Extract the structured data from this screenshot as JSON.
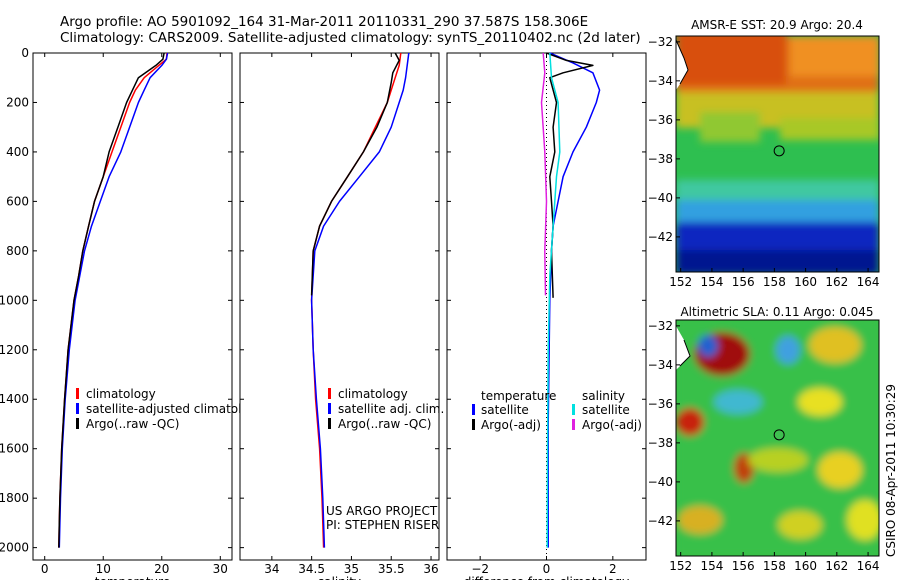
{
  "header": {
    "title_line1": "Argo profile: AO 5901092_164 31-Mar-2011 20110331_290 37.587S 158.306E",
    "title_line2": "Climatology: CARS2009. Satellite-adjusted climatology: synTS_20110402.nc (2d later)"
  },
  "side_stamp": "CSIRO 08-Apr-2011 10:30:29",
  "colors": {
    "climatology": "#ff0000",
    "satellite": "#0000ff",
    "argo": "#000000",
    "sal_satellite": "#00e0e0",
    "sal_argo": "#e020e0"
  },
  "chart_data": [
    {
      "id": "temperature",
      "type": "line",
      "xlabel": "temperature",
      "ylabel": "",
      "xlim": [
        -2,
        32
      ],
      "ylim": [
        2050,
        0
      ],
      "xticks": [
        0,
        10,
        20,
        30
      ],
      "yticks": [
        0,
        200,
        400,
        600,
        800,
        1000,
        1200,
        1400,
        1600,
        1800,
        2000
      ],
      "legend": [
        "climatology",
        "satellite-adjusted climatology",
        "Argo(..raw -QC)"
      ],
      "series": [
        {
          "name": "climatology",
          "color": "#ff0000",
          "x": [
            20.9,
            20.8,
            19.5,
            17.0,
            15.5,
            14.5,
            13.0,
            11.5,
            10.0,
            8.5,
            7.5,
            6.5,
            5.8,
            5.0,
            4.0,
            3.4,
            2.9,
            2.6,
            2.5,
            2.4
          ],
          "y": [
            0,
            25,
            50,
            100,
            150,
            200,
            300,
            400,
            500,
            600,
            700,
            800,
            900,
            1000,
            1200,
            1400,
            1600,
            1800,
            1900,
            2000
          ]
        },
        {
          "name": "satellite-adjusted climatology",
          "color": "#0000ff",
          "x": [
            21.0,
            20.8,
            20.0,
            18.0,
            17.0,
            16.0,
            14.5,
            13.0,
            11.0,
            9.5,
            8.0,
            6.8,
            6.0,
            5.2,
            4.2,
            3.5,
            3.0,
            2.7,
            2.6,
            2.5
          ],
          "y": [
            0,
            25,
            50,
            100,
            150,
            200,
            300,
            400,
            500,
            600,
            700,
            800,
            900,
            1000,
            1200,
            1400,
            1600,
            1800,
            1900,
            2000
          ]
        },
        {
          "name": "Argo(..raw -QC)",
          "color": "#000000",
          "x": [
            20.4,
            20.2,
            19.0,
            16.0,
            15.0,
            14.0,
            12.5,
            11.0,
            10.0,
            8.5,
            7.5,
            6.5,
            5.8,
            5.0,
            4.0,
            3.4,
            2.9,
            2.6,
            2.5,
            2.4
          ],
          "y": [
            0,
            25,
            50,
            100,
            150,
            200,
            300,
            400,
            500,
            600,
            700,
            800,
            900,
            1000,
            1200,
            1400,
            1600,
            1800,
            1900,
            2000
          ]
        }
      ]
    },
    {
      "id": "salinity",
      "type": "line",
      "xlabel": "salinity",
      "ylabel": "",
      "xlim": [
        33.6,
        36.1
      ],
      "ylim": [
        2050,
        0
      ],
      "xticks": [
        34,
        34.5,
        35,
        35.5,
        36
      ],
      "xtick_labels": [
        "34",
        "34.5",
        "35",
        "35.5",
        "36"
      ],
      "legend": [
        "climatology",
        "satellite adj. clim.",
        "Argo(..raw -QC)"
      ],
      "annotation": [
        "US ARGO PROJECT",
        "PI: STEPHEN RISER"
      ],
      "series": [
        {
          "name": "climatology",
          "color": "#ff0000",
          "x": [
            35.62,
            35.6,
            35.55,
            35.5,
            35.45,
            35.3,
            35.15,
            34.95,
            34.75,
            34.6,
            34.52,
            34.5,
            34.52,
            34.55,
            34.6,
            34.63,
            34.65
          ],
          "y": [
            0,
            50,
            100,
            150,
            200,
            300,
            400,
            500,
            600,
            700,
            800,
            1000,
            1200,
            1400,
            1600,
            1800,
            2000
          ]
        },
        {
          "name": "satellite adj. clim.",
          "color": "#0000ff",
          "x": [
            35.72,
            35.7,
            35.68,
            35.65,
            35.6,
            35.5,
            35.35,
            35.1,
            34.85,
            34.65,
            34.54,
            34.5,
            34.52,
            34.56,
            34.61,
            34.64,
            34.66
          ],
          "y": [
            0,
            50,
            100,
            150,
            200,
            300,
            400,
            500,
            600,
            700,
            800,
            1000,
            1200,
            1400,
            1600,
            1800,
            2000
          ]
        },
        {
          "name": "Argo(..raw -QC)",
          "color": "#000000",
          "x": [
            35.55,
            35.6,
            35.52,
            35.5,
            35.45,
            35.32,
            35.15,
            34.95,
            34.75,
            34.6,
            34.52,
            34.5
          ],
          "y": [
            0,
            30,
            80,
            120,
            200,
            300,
            400,
            500,
            600,
            700,
            800,
            980
          ]
        }
      ]
    },
    {
      "id": "difference",
      "type": "line",
      "xlabel": "difference from climatology",
      "ylabel": "",
      "xlim": [
        -3,
        3
      ],
      "ylim": [
        2050,
        0
      ],
      "xticks": [
        -2,
        0,
        2
      ],
      "xtick_labels": [
        "−2",
        "0",
        "2"
      ],
      "legend_headers": [
        "temperature",
        "salinity"
      ],
      "legend_temperature": [
        "satellite",
        "Argo(-adj)"
      ],
      "legend_salinity": [
        "satellite",
        "Argo(-adj)"
      ],
      "series": [
        {
          "name": "temperature satellite",
          "color": "#0000ff",
          "x": [
            0.1,
            0.8,
            1.4,
            1.6,
            1.5,
            1.2,
            0.8,
            0.5,
            0.35,
            0.2,
            0.15,
            0.1,
            0.05,
            0.05
          ],
          "y": [
            0,
            40,
            80,
            150,
            200,
            300,
            400,
            500,
            600,
            700,
            800,
            1000,
            1500,
            2000
          ]
        },
        {
          "name": "temperature Argo(-adj)",
          "color": "#000000",
          "x": [
            0.0,
            0.6,
            1.4,
            0.5,
            0.1,
            0.3,
            0.2,
            0.25,
            0.1,
            0.15,
            0.2,
            0.15,
            0.2
          ],
          "y": [
            0,
            30,
            50,
            80,
            100,
            200,
            300,
            400,
            500,
            600,
            700,
            800,
            990
          ]
        },
        {
          "name": "salinity satellite",
          "color": "#00e0e0",
          "x": [
            0.1,
            0.15,
            0.35,
            0.4,
            0.3,
            0.2,
            0.1,
            0.05,
            0.03,
            0.02
          ],
          "y": [
            0,
            100,
            200,
            400,
            500,
            700,
            900,
            1200,
            1600,
            2000
          ]
        },
        {
          "name": "salinity Argo(-adj)",
          "color": "#e020e0",
          "x": [
            -0.1,
            -0.05,
            -0.15,
            -0.05,
            0.0,
            -0.05,
            -0.03
          ],
          "y": [
            0,
            80,
            200,
            400,
            600,
            800,
            980
          ]
        }
      ]
    },
    {
      "id": "sst-map",
      "type": "heatmap",
      "title": "AMSR-E SST: 20.9  Argo: 20.4",
      "xlim": [
        151.7,
        164.7
      ],
      "ylim": [
        -43.8,
        -31.7
      ],
      "xticks": [
        152,
        154,
        156,
        158,
        160,
        162,
        164
      ],
      "yticks": [
        -32,
        -34,
        -36,
        -38,
        -40,
        -42
      ],
      "marker": {
        "x": 158.306,
        "y": -37.587
      }
    },
    {
      "id": "sla-map",
      "type": "heatmap",
      "title": "Altimetric SLA: 0.11  Argo: 0.045",
      "xlim": [
        151.7,
        164.7
      ],
      "ylim": [
        -43.8,
        -31.7
      ],
      "xticks": [
        152,
        154,
        156,
        158,
        160,
        162,
        164
      ],
      "yticks": [
        -32,
        -34,
        -36,
        -38,
        -40,
        -42
      ],
      "marker": {
        "x": 158.306,
        "y": -37.587
      }
    }
  ]
}
